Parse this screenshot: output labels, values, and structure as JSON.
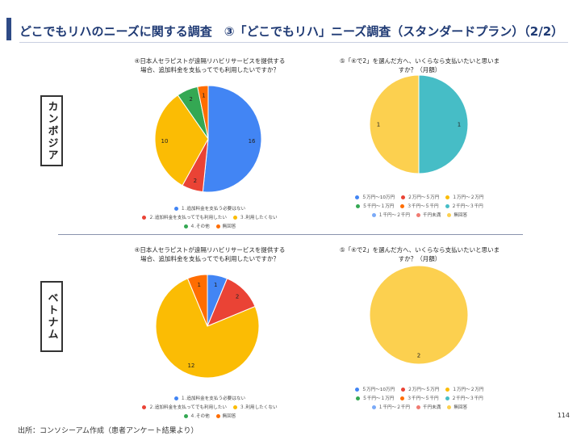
{
  "header": {
    "title": "どこでもリハのニーズに関する調査　③「どこでもリハ」ニーズ調査（スタンダードプラン）（2/2）"
  },
  "countries": {
    "cambodia": "カンボジア",
    "vietnam": "ベトナム"
  },
  "footer": {
    "source": "出所：コンソシーアム作成（患者アンケート結果より）",
    "page_number": "114"
  },
  "colors": {
    "blue": "#4285f4",
    "red": "#ea4335",
    "yellow": "#fbbc04",
    "green": "#34a853",
    "orange": "#ff6d01",
    "teal": "#46bdc6",
    "light_blue": "#7baaf7",
    "pink": "#f07b72",
    "light_yellow": "#fcd04f"
  },
  "chart_data": [
    {
      "id": "cambodia_q4",
      "type": "pie",
      "title_lines": [
        "④日本人セラピストが遠隔リハビリサービスを提供する",
        "場合、追加料金を支払ってでも利用したいですか？"
      ],
      "categories": [
        "１.追加料金を支払う必要はない",
        "２.追加料金を支払ってでも利用したい",
        "３.利用したくない",
        "４.その他",
        "無回答"
      ],
      "values": [
        16,
        2,
        10,
        2,
        1
      ],
      "colors": [
        "#4285f4",
        "#ea4335",
        "#fbbc04",
        "#34a853",
        "#ff6d01"
      ],
      "legend_rows": [
        [
          0
        ],
        [
          1,
          2
        ],
        [
          3,
          4
        ]
      ]
    },
    {
      "id": "cambodia_q5",
      "type": "pie",
      "title_lines": [
        "⑤「④で2」を選んだ方へ、いくらなら支払いたいと思いま",
        "すか？（月額）"
      ],
      "categories": [
        "５万円～10万円",
        "２万円～５万円",
        "１万円～２万円",
        "５千円～１万円",
        "３千円～５千円",
        "２千円～３千円",
        "１千円～２千円",
        "千円未満",
        "無回答"
      ],
      "values": [
        0,
        0,
        0,
        0,
        0,
        1,
        0,
        0,
        1
      ],
      "colors": [
        "#4285f4",
        "#ea4335",
        "#fbbc04",
        "#34a853",
        "#ff6d01",
        "#46bdc6",
        "#7baaf7",
        "#f07b72",
        "#fcd04f"
      ],
      "legend_rows": [
        [
          0,
          1,
          2
        ],
        [
          3,
          4,
          5
        ],
        [
          6,
          7,
          8
        ]
      ]
    },
    {
      "id": "vietnam_q4",
      "type": "pie",
      "title_lines": [
        "④日本人セラピストが遠隔リハビリサービスを提供する",
        "場合、追加料金を支払ってでも利用したいですか？"
      ],
      "categories": [
        "１.追加料金を支払う必要はない",
        "２.追加料金を支払ってでも利用したい",
        "３.利用したくない",
        "４.その他",
        "無回答"
      ],
      "values": [
        1,
        2,
        12,
        0,
        1
      ],
      "colors": [
        "#4285f4",
        "#ea4335",
        "#fbbc04",
        "#34a853",
        "#ff6d01"
      ],
      "legend_rows": [
        [
          0
        ],
        [
          1,
          2
        ],
        [
          3,
          4
        ]
      ]
    },
    {
      "id": "vietnam_q5",
      "type": "pie",
      "title_lines": [
        "⑤「④で2」を選んだ方へ、いくらなら支払いたいと思いま",
        "すか？（月額）"
      ],
      "categories": [
        "５万円～10万円",
        "２万円～５万円",
        "１万円～２万円",
        "５千円～１万円",
        "３千円～５千円",
        "２千円～３千円",
        "１千円～２千円",
        "千円未満",
        "無回答"
      ],
      "values": [
        0,
        0,
        0,
        0,
        0,
        0,
        0,
        0,
        2
      ],
      "colors": [
        "#4285f4",
        "#ea4335",
        "#fbbc04",
        "#34a853",
        "#ff6d01",
        "#46bdc6",
        "#7baaf7",
        "#f07b72",
        "#fcd04f"
      ],
      "legend_rows": [
        [
          0,
          1,
          2
        ],
        [
          3,
          4,
          5
        ],
        [
          6,
          7,
          8
        ]
      ]
    }
  ]
}
